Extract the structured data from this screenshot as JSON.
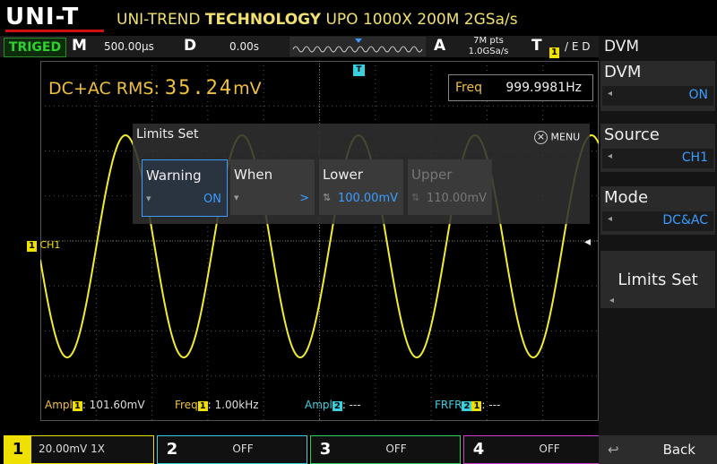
{
  "header": {
    "logo": "UNI-T",
    "brand": "UNI-TREND",
    "company": "TECHNOLOGY",
    "model": "UPO 1000X 200M 2GSa/s"
  },
  "status_bar": {
    "trigger_state": "TRIGED",
    "timebase_label": "M",
    "timebase": "500.00µs",
    "delay_label": "D",
    "delay": "0.00s",
    "acquire_label": "A",
    "memory_depth": "7M pts",
    "sample_rate": "1.0GSa/s",
    "trigger_label": "T",
    "trigger_source": "1",
    "trigger_mode": "/ E D"
  },
  "measurement": {
    "label": "DC+AC RMS:",
    "value": "35.24",
    "unit": "mV",
    "freq_label": "Freq",
    "freq_value": "999.9981Hz"
  },
  "dialog": {
    "title": "Limits Set",
    "close": "MENU",
    "items": [
      {
        "label": "Warning",
        "value": "ON"
      },
      {
        "label": "When",
        "value": ">"
      },
      {
        "label": "Lower",
        "value": "100.00mV"
      },
      {
        "label": "Upper",
        "value": "110.00mV"
      }
    ]
  },
  "trigger_marker": "T",
  "channel_marker": {
    "number": "1",
    "label": "CH1"
  },
  "measurements": [
    {
      "name": "Ampl",
      "sources": [
        "1"
      ],
      "value": ": 101.60mV"
    },
    {
      "name": "Freq",
      "sources": [
        "1"
      ],
      "value": ": 1.00kHz"
    },
    {
      "name": "Ampl",
      "sources": [
        "2"
      ],
      "value": ": ---"
    },
    {
      "name": "FRFR",
      "sources": [
        "2",
        "1"
      ],
      "value": ": ---"
    }
  ],
  "channel_bar": [
    {
      "number": "1",
      "value": "20.00mV 1X"
    },
    {
      "number": "2",
      "value": "OFF"
    },
    {
      "number": "3",
      "value": "OFF"
    },
    {
      "number": "4",
      "value": "OFF"
    }
  ],
  "side_menu": {
    "title": "DVM",
    "items": [
      {
        "label": "DVM",
        "value": "ON"
      },
      {
        "label": "Source",
        "value": "CH1"
      },
      {
        "label": "Mode",
        "value": "DC&AC"
      },
      {
        "label": "Limits Set"
      }
    ],
    "back": "Back"
  }
}
